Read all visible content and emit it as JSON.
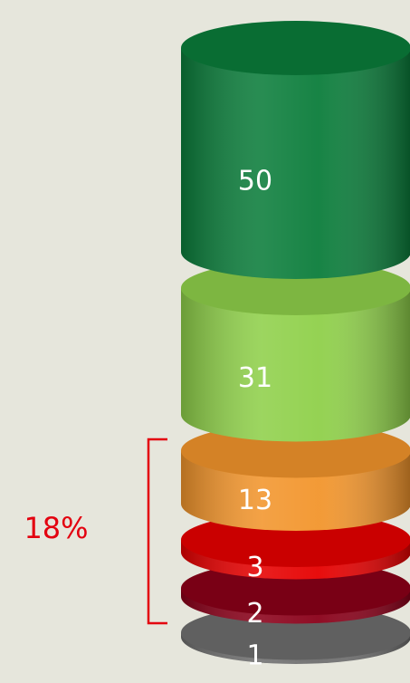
{
  "chart_data": {
    "type": "cylinder",
    "values": [
      50,
      31,
      13,
      3,
      2,
      1
    ],
    "colors": [
      "#0b7d3b",
      "#8fd04a",
      "#f2952c",
      "#e60000",
      "#8a0019",
      "#6e6e6e"
    ],
    "annotation": "18%",
    "annotation_color": "#e3000f"
  }
}
